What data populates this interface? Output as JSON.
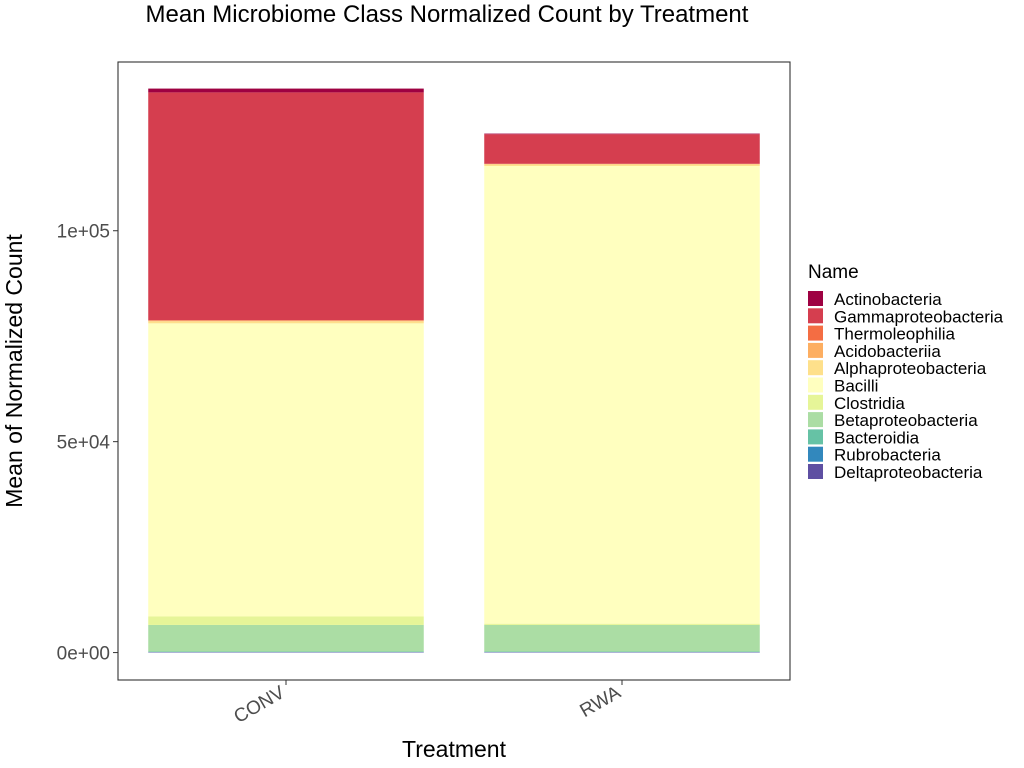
{
  "chart_data": {
    "type": "bar",
    "stacked": true,
    "title": "Mean Microbiome Class Normalized Count by Treatment",
    "xlabel": "Treatment",
    "ylabel": "Mean of Normalized Count",
    "categories": [
      "CONV",
      "RWA"
    ],
    "ylim": [
      -6500,
      140000
    ],
    "yticks": [
      {
        "value": 0,
        "label": "0e+00"
      },
      {
        "value": 50000,
        "label": "5e+04"
      },
      {
        "value": 100000,
        "label": "1e+05"
      }
    ],
    "legend_title": "Name",
    "legend_position": "right",
    "grid": false,
    "stack_order_bottom_to_top": [
      "Deltaproteobacteria",
      "Rubrobacteria",
      "Bacteroidia",
      "Betaproteobacteria",
      "Clostridia",
      "Bacilli",
      "Alphaproteobacteria",
      "Acidobacteriia",
      "Thermoleophilia",
      "Gammaproteobacteria",
      "Actinobacteria"
    ],
    "series": [
      {
        "name": "Actinobacteria",
        "color": "#9E0142",
        "values": [
          900,
          150
        ]
      },
      {
        "name": "Gammaproteobacteria",
        "color": "#D53E4F",
        "values": [
          54000,
          7000
        ]
      },
      {
        "name": "Thermoleophilia",
        "color": "#F46D43",
        "values": [
          100,
          50
        ]
      },
      {
        "name": "Acidobacteriia",
        "color": "#FDAE61",
        "values": [
          150,
          80
        ]
      },
      {
        "name": "Alphaproteobacteria",
        "color": "#FEE08B",
        "values": [
          500,
          400
        ]
      },
      {
        "name": "Bacilli",
        "color": "#FFFFBF",
        "values": [
          69500,
          108500
        ]
      },
      {
        "name": "Clostridia",
        "color": "#E6F598",
        "values": [
          2000,
          300
        ]
      },
      {
        "name": "Betaproteobacteria",
        "color": "#ABDDA4",
        "values": [
          6300,
          6300
        ]
      },
      {
        "name": "Bacteroidia",
        "color": "#66C2A5",
        "values": [
          100,
          100
        ]
      },
      {
        "name": "Rubrobacteria",
        "color": "#3288BD",
        "values": [
          50,
          50
        ]
      },
      {
        "name": "Deltaproteobacteria",
        "color": "#5E4FA2",
        "values": [
          100,
          100
        ]
      }
    ]
  }
}
